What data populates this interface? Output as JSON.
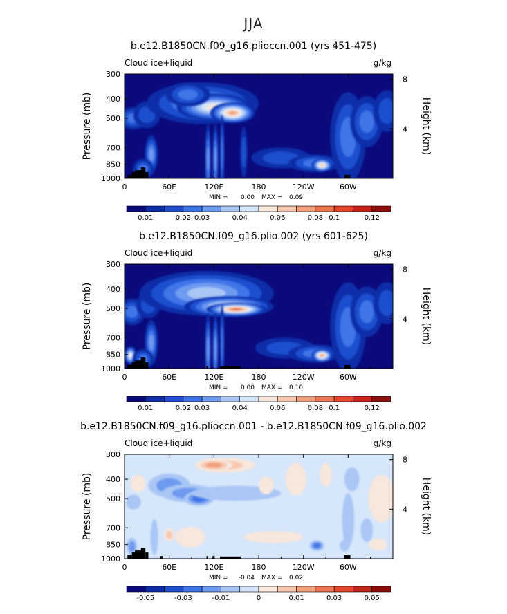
{
  "page_title": "JJA",
  "chart_data": [
    {
      "type": "heatmap",
      "title": "b.e12.B1850CN.f09_g16.plioccn.001 (yrs 451-475)",
      "field_label": "Cloud ice+liquid",
      "units": "g/kg",
      "ylabel": "Pressure (mb)",
      "y2label": "Height (km)",
      "x_ticks": [
        "0",
        "60E",
        "120E",
        "180",
        "120W",
        "60W"
      ],
      "x_tick_values": [
        0,
        60,
        120,
        180,
        240,
        300
      ],
      "xlim": [
        0,
        360
      ],
      "y_ticks": [
        "300",
        "400",
        "500",
        "700",
        "850",
        "1000"
      ],
      "y_tick_values": [
        300,
        400,
        500,
        700,
        850,
        1000
      ],
      "ylim": [
        1000,
        300
      ],
      "y_scale": "log",
      "y2_ticks": [
        "8",
        "4"
      ],
      "y2_tick_values": [
        8,
        4
      ],
      "min_label": "MIN =",
      "min_value": "0.00",
      "max_label": "MAX =",
      "max_value": "0.09",
      "colorbar_labels": [
        "0.01",
        "0.02",
        "0.03",
        "0.04",
        "0.06",
        "0.08",
        "0.1",
        "0.12"
      ],
      "colorbar_colors": [
        "#0b0a7d",
        "#0d2ea8",
        "#1f4fcf",
        "#3f74e8",
        "#6e9af0",
        "#a9c6f5",
        "#d6e6fb",
        "#f7e7dd",
        "#f8c9b1",
        "#f2a07e",
        "#ee7653",
        "#e4462b",
        "#c8231a",
        "#8f0d0d"
      ],
      "background_level": 0,
      "blobs": [
        {
          "x": 12,
          "p": 500,
          "w": 20,
          "h": 75,
          "v": 3
        },
        {
          "x": 30,
          "p": 480,
          "w": 18,
          "h": 90,
          "v": 2
        },
        {
          "x": 36,
          "p": 760,
          "w": 9,
          "h": 130,
          "v": 4
        },
        {
          "x": 25,
          "p": 900,
          "w": 14,
          "h": 70,
          "v": 3
        },
        {
          "x": 105,
          "p": 420,
          "w": 75,
          "h": 140,
          "v": 4
        },
        {
          "x": 120,
          "p": 440,
          "w": 50,
          "h": 90,
          "v": 7
        },
        {
          "x": 145,
          "p": 470,
          "w": 30,
          "h": 70,
          "v": 9
        },
        {
          "x": 85,
          "p": 380,
          "w": 30,
          "h": 80,
          "v": 3
        },
        {
          "x": 112,
          "p": 800,
          "w": 4,
          "h": 240,
          "v": 4
        },
        {
          "x": 122,
          "p": 800,
          "w": 4,
          "h": 240,
          "v": 4
        },
        {
          "x": 131,
          "p": 750,
          "w": 3,
          "h": 260,
          "v": 3
        },
        {
          "x": 160,
          "p": 740,
          "w": 5,
          "h": 170,
          "v": 2
        },
        {
          "x": 210,
          "p": 790,
          "w": 40,
          "h": 70,
          "v": 2
        },
        {
          "x": 255,
          "p": 840,
          "w": 35,
          "h": 60,
          "v": 3
        },
        {
          "x": 265,
          "p": 860,
          "w": 14,
          "h": 45,
          "v": 8
        },
        {
          "x": 300,
          "p": 620,
          "w": 24,
          "h": 300,
          "v": 3
        },
        {
          "x": 325,
          "p": 520,
          "w": 22,
          "h": 170,
          "v": 3
        },
        {
          "x": 352,
          "p": 460,
          "w": 18,
          "h": 140,
          "v": 2
        }
      ],
      "terrain": [
        {
          "lon0": 4,
          "lon1": 10,
          "p": 960
        },
        {
          "lon0": 10,
          "lon1": 16,
          "p": 930
        },
        {
          "lon0": 14,
          "lon1": 25,
          "p": 910
        },
        {
          "lon0": 22,
          "lon1": 28,
          "p": 880
        },
        {
          "lon0": 28,
          "lon1": 32,
          "p": 930
        },
        {
          "lon0": 295,
          "lon1": 303,
          "p": 960
        }
      ]
    },
    {
      "type": "heatmap",
      "title": "b.e12.B1850CN.f09_g16.plio.002 (yrs 601-625)",
      "field_label": "Cloud ice+liquid",
      "units": "g/kg",
      "ylabel": "Pressure (mb)",
      "y2label": "Height (km)",
      "x_ticks": [
        "0",
        "60E",
        "120E",
        "180",
        "120W",
        "60W"
      ],
      "x_tick_values": [
        0,
        60,
        120,
        180,
        240,
        300
      ],
      "xlim": [
        0,
        360
      ],
      "y_ticks": [
        "300",
        "400",
        "500",
        "700",
        "850",
        "1000"
      ],
      "y_tick_values": [
        300,
        400,
        500,
        700,
        850,
        1000
      ],
      "ylim": [
        1000,
        300
      ],
      "y_scale": "log",
      "y2_ticks": [
        "8",
        "4"
      ],
      "y2_tick_values": [
        8,
        4
      ],
      "min_label": "MIN =",
      "min_value": "0.00",
      "max_label": "MAX =",
      "max_value": "0.10",
      "colorbar_labels": [
        "0.01",
        "0.02",
        "0.03",
        "0.04",
        "0.06",
        "0.08",
        "0.1",
        "0.12"
      ],
      "colorbar_colors": [
        "#0b0a7d",
        "#0d2ea8",
        "#1f4fcf",
        "#3f74e8",
        "#6e9af0",
        "#a9c6f5",
        "#d6e6fb",
        "#f7e7dd",
        "#f8c9b1",
        "#f2a07e",
        "#ee7653",
        "#e4462b",
        "#c8231a",
        "#8f0d0d"
      ],
      "background_level": 0,
      "blobs": [
        {
          "x": 10,
          "p": 520,
          "w": 18,
          "h": 90,
          "v": 3
        },
        {
          "x": 32,
          "p": 480,
          "w": 16,
          "h": 90,
          "v": 2
        },
        {
          "x": 36,
          "p": 740,
          "w": 9,
          "h": 150,
          "v": 4
        },
        {
          "x": 8,
          "p": 860,
          "w": 8,
          "h": 60,
          "v": 7
        },
        {
          "x": 25,
          "p": 900,
          "w": 14,
          "h": 70,
          "v": 3
        },
        {
          "x": 110,
          "p": 420,
          "w": 90,
          "h": 150,
          "v": 5
        },
        {
          "x": 140,
          "p": 490,
          "w": 60,
          "h": 70,
          "v": 7
        },
        {
          "x": 150,
          "p": 505,
          "w": 40,
          "h": 45,
          "v": 10
        },
        {
          "x": 112,
          "p": 800,
          "w": 4,
          "h": 240,
          "v": 4
        },
        {
          "x": 122,
          "p": 800,
          "w": 4,
          "h": 240,
          "v": 4
        },
        {
          "x": 131,
          "p": 750,
          "w": 3,
          "h": 260,
          "v": 3
        },
        {
          "x": 215,
          "p": 790,
          "w": 40,
          "h": 70,
          "v": 2
        },
        {
          "x": 255,
          "p": 840,
          "w": 35,
          "h": 60,
          "v": 3
        },
        {
          "x": 265,
          "p": 860,
          "w": 14,
          "h": 45,
          "v": 9
        },
        {
          "x": 300,
          "p": 620,
          "w": 24,
          "h": 300,
          "v": 3
        },
        {
          "x": 325,
          "p": 520,
          "w": 22,
          "h": 170,
          "v": 3
        },
        {
          "x": 352,
          "p": 470,
          "w": 18,
          "h": 140,
          "v": 2
        }
      ],
      "terrain": [
        {
          "lon0": 4,
          "lon1": 10,
          "p": 960
        },
        {
          "lon0": 10,
          "lon1": 16,
          "p": 930
        },
        {
          "lon0": 14,
          "lon1": 25,
          "p": 910
        },
        {
          "lon0": 22,
          "lon1": 28,
          "p": 880
        },
        {
          "lon0": 28,
          "lon1": 32,
          "p": 930
        },
        {
          "lon0": 110,
          "lon1": 112,
          "p": 970
        },
        {
          "lon0": 128,
          "lon1": 156,
          "p": 975
        },
        {
          "lon0": 295,
          "lon1": 303,
          "p": 960
        }
      ]
    },
    {
      "type": "heatmap",
      "title": "b.e12.B1850CN.f09_g16.plioccn.001 - b.e12.B1850CN.f09_g16.plio.002",
      "field_label": "Cloud ice+liquid",
      "units": "g/kg",
      "ylabel": "Pressure (mb)",
      "y2label": "Height (km)",
      "x_ticks": [
        "0",
        "60E",
        "120E",
        "180",
        "120W",
        "60W"
      ],
      "x_tick_values": [
        0,
        60,
        120,
        180,
        240,
        300
      ],
      "xlim": [
        0,
        360
      ],
      "y_ticks": [
        "300",
        "400",
        "500",
        "700",
        "850",
        "1000"
      ],
      "y_tick_values": [
        300,
        400,
        500,
        700,
        850,
        1000
      ],
      "ylim": [
        1000,
        300
      ],
      "y_scale": "log",
      "y2_ticks": [
        "8",
        "4"
      ],
      "y2_tick_values": [
        8,
        4
      ],
      "min_label": "MIN =",
      "min_value": "-0.04",
      "max_label": "MAX =",
      "max_value": "0.02",
      "colorbar_labels": [
        "-0.05",
        "-0.03",
        "-0.01",
        "0",
        "0.01",
        "0.03",
        "0.05"
      ],
      "colorbar_colors": [
        "#0b0a7d",
        "#0d2ea8",
        "#1f4fcf",
        "#3f74e8",
        "#6e9af0",
        "#a9c6f5",
        "#d6e6fb",
        "#f7e7dd",
        "#f8c9b1",
        "#f2a07e",
        "#ee7653",
        "#e4462b",
        "#c8231a",
        "#8f0d0d"
      ],
      "background_level": 6,
      "blobs": [
        {
          "x": 18,
          "p": 420,
          "w": 10,
          "h": 60,
          "v": 7
        },
        {
          "x": 12,
          "p": 520,
          "w": 10,
          "h": 50,
          "v": 5
        },
        {
          "x": 40,
          "p": 780,
          "w": 5,
          "h": 120,
          "v": 5
        },
        {
          "x": 10,
          "p": 870,
          "w": 7,
          "h": 60,
          "v": 4
        },
        {
          "x": 60,
          "p": 430,
          "w": 28,
          "h": 80,
          "v": 4
        },
        {
          "x": 85,
          "p": 470,
          "w": 35,
          "h": 60,
          "v": 4
        },
        {
          "x": 100,
          "p": 500,
          "w": 20,
          "h": 50,
          "v": 3
        },
        {
          "x": 135,
          "p": 340,
          "w": 40,
          "h": 50,
          "v": 8
        },
        {
          "x": 120,
          "p": 340,
          "w": 25,
          "h": 40,
          "v": 9
        },
        {
          "x": 150,
          "p": 470,
          "w": 60,
          "h": 50,
          "v": 5
        },
        {
          "x": 190,
          "p": 430,
          "w": 10,
          "h": 60,
          "v": 7
        },
        {
          "x": 88,
          "p": 780,
          "w": 20,
          "h": 70,
          "v": 7
        },
        {
          "x": 60,
          "p": 760,
          "w": 7,
          "h": 45,
          "v": 8
        },
        {
          "x": 200,
          "p": 780,
          "w": 40,
          "h": 40,
          "v": 7
        },
        {
          "x": 230,
          "p": 400,
          "w": 14,
          "h": 110,
          "v": 7
        },
        {
          "x": 270,
          "p": 380,
          "w": 8,
          "h": 80,
          "v": 7
        },
        {
          "x": 305,
          "p": 400,
          "w": 10,
          "h": 80,
          "v": 5
        },
        {
          "x": 300,
          "p": 640,
          "w": 8,
          "h": 180,
          "v": 5
        },
        {
          "x": 325,
          "p": 720,
          "w": 8,
          "h": 80,
          "v": 5
        },
        {
          "x": 295,
          "p": 860,
          "w": 6,
          "h": 40,
          "v": 5
        },
        {
          "x": 258,
          "p": 860,
          "w": 10,
          "h": 35,
          "v": 3
        },
        {
          "x": 340,
          "p": 850,
          "w": 12,
          "h": 40,
          "v": 7
        },
        {
          "x": 345,
          "p": 500,
          "w": 18,
          "h": 160,
          "v": 7
        }
      ],
      "terrain": [
        {
          "lon0": 4,
          "lon1": 10,
          "p": 960
        },
        {
          "lon0": 10,
          "lon1": 16,
          "p": 930
        },
        {
          "lon0": 14,
          "lon1": 25,
          "p": 910
        },
        {
          "lon0": 22,
          "lon1": 28,
          "p": 880
        },
        {
          "lon0": 28,
          "lon1": 32,
          "p": 930
        },
        {
          "lon0": 48,
          "lon1": 51,
          "p": 970
        },
        {
          "lon0": 110,
          "lon1": 112,
          "p": 970
        },
        {
          "lon0": 118,
          "lon1": 121,
          "p": 970
        },
        {
          "lon0": 128,
          "lon1": 156,
          "p": 975
        },
        {
          "lon0": 295,
          "lon1": 303,
          "p": 960
        }
      ]
    }
  ]
}
